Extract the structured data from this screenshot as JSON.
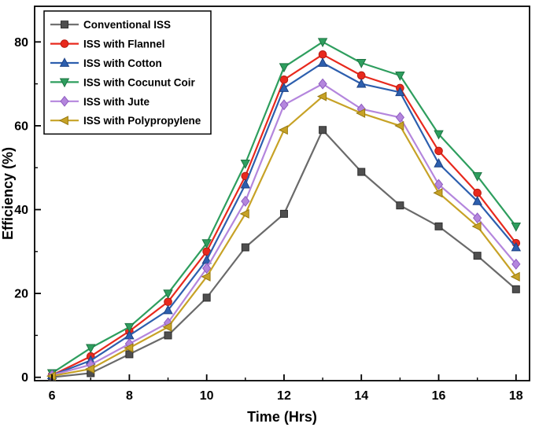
{
  "figure": {
    "background": "#ffffff",
    "axis_color": "#000000",
    "text_color": "#000000"
  },
  "chart_data": {
    "type": "line",
    "title": "",
    "xlabel": "Time (Hrs)",
    "ylabel": "Efficiency (%)",
    "xlim": [
      5.55,
      18.35
    ],
    "ylim": [
      -0.8,
      88.5
    ],
    "xticks": [
      6,
      8,
      10,
      12,
      14,
      16,
      18
    ],
    "xminor": [
      7,
      9,
      11,
      13,
      15,
      17
    ],
    "yticks": [
      0,
      20,
      40,
      60,
      80
    ],
    "yminor": [
      10,
      30,
      50,
      70
    ],
    "grid": false,
    "legend_position": "top-left",
    "x": [
      6,
      7,
      8,
      9,
      10,
      11,
      12,
      13,
      14,
      15,
      16,
      17,
      18
    ],
    "series": [
      {
        "name": "Conventional ISS",
        "marker": "square",
        "color": "#4f4f4f",
        "edge": "#2e2e2e",
        "line_color": "#6a6a6a",
        "values": [
          0,
          1,
          5.5,
          10,
          19,
          31,
          39,
          59,
          49,
          41,
          36,
          29,
          21
        ]
      },
      {
        "name": "ISS with Flannel",
        "marker": "circle",
        "color": "#e8291d",
        "edge": "#b51a10",
        "line_color": "#e8291d",
        "values": [
          0.5,
          5,
          11,
          18,
          30,
          48,
          71,
          77,
          72,
          69,
          54,
          44,
          32
        ]
      },
      {
        "name": "ISS with Cotton",
        "marker": "triangle-up",
        "color": "#2d5fae",
        "edge": "#1d4184",
        "line_color": "#2d5fae",
        "values": [
          0.5,
          4,
          10,
          16,
          28,
          46,
          69,
          75,
          70,
          68,
          51,
          42,
          31
        ]
      },
      {
        "name": "ISS with Cocunut Coir",
        "marker": "triangle-down",
        "color": "#2e9e5e",
        "edge": "#1d7342",
        "line_color": "#2e9e5e",
        "values": [
          1,
          7,
          12,
          20,
          32,
          51,
          74,
          80,
          75,
          72,
          58,
          48,
          36
        ]
      },
      {
        "name": "ISS with Jute",
        "marker": "diamond",
        "color": "#b486dd",
        "edge": "#8e5cc0",
        "line_color": "#b486dd",
        "values": [
          0.5,
          3,
          8,
          13,
          26,
          42,
          65,
          70,
          64,
          62,
          46,
          38,
          27
        ]
      },
      {
        "name": "ISS with Polypropylene",
        "marker": "triangle-left",
        "color": "#c7a226",
        "edge": "#97790f",
        "line_color": "#c7a226",
        "values": [
          0.3,
          2,
          7,
          12,
          24,
          39,
          59,
          67,
          63,
          60,
          44,
          36,
          24
        ]
      }
    ]
  }
}
